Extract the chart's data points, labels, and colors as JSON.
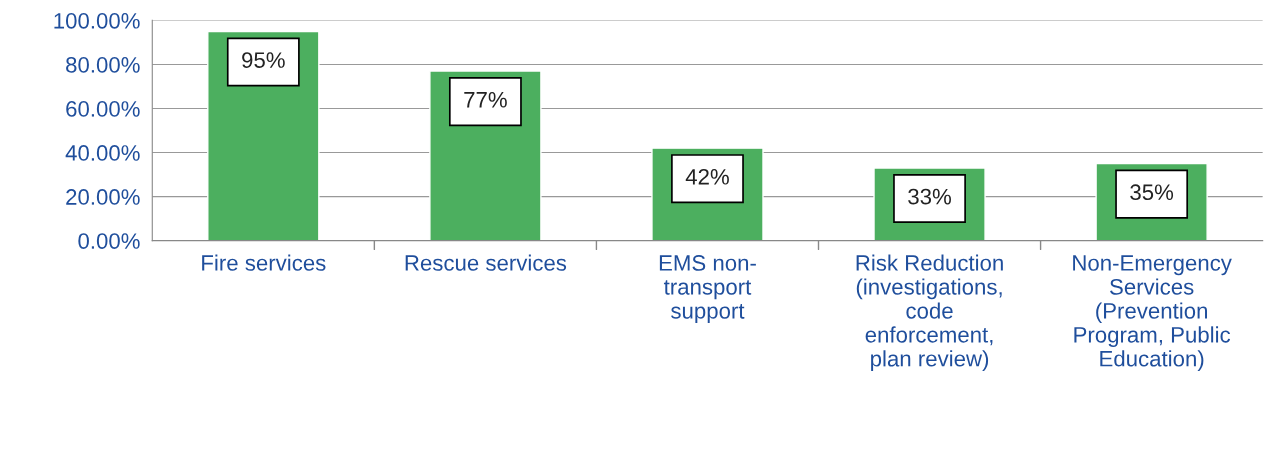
{
  "chart_data": {
    "type": "bar",
    "categories": [
      "Fire services",
      "Rescue services",
      "EMS non-\ntransport\nsupport",
      "Risk Reduction\n(investigations,\ncode\nenforcement,\nplan review)",
      "Non-Emergency\nServices\n(Prevention\nProgram, Public\nEducation)"
    ],
    "values": [
      95,
      77,
      42,
      33,
      35
    ],
    "value_labels": [
      "95%",
      "77%",
      "42%",
      "33%",
      "35%"
    ],
    "color": "#4caf5f",
    "ylim": [
      0,
      100
    ],
    "yticks": [
      {
        "value": 0,
        "label": "0.00%"
      },
      {
        "value": 20,
        "label": "20.00%"
      },
      {
        "value": 40,
        "label": "40.00%"
      },
      {
        "value": 60,
        "label": "60.00%"
      },
      {
        "value": 80,
        "label": "80.00%"
      },
      {
        "value": 100,
        "label": "100.00%"
      }
    ],
    "grid": "y"
  }
}
